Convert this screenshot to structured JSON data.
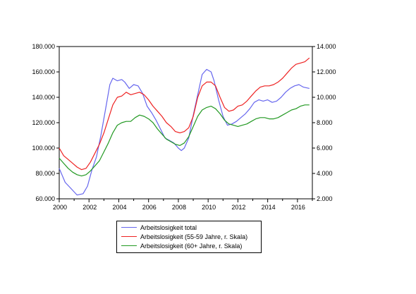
{
  "chart_data": {
    "type": "line",
    "title": "",
    "xlabel": "",
    "ylabel": "",
    "xlim": [
      2000,
      2017
    ],
    "ylim": [
      60000,
      180000
    ],
    "y2lim": [
      2000,
      14000
    ],
    "x_tick_labels": [
      "2000",
      "2002",
      "2004",
      "2006",
      "2008",
      "2010",
      "2012",
      "2014",
      "2016"
    ],
    "y_tick_labels": [
      "60.000",
      "80.000",
      "100.000",
      "120.000",
      "140.000",
      "160.000",
      "180.000"
    ],
    "y2_tick_labels": [
      "2.000",
      "4.000",
      "6.000",
      "8.000",
      "10.000",
      "12.000",
      "14.000"
    ],
    "grid": false,
    "legend_position": "bottom",
    "series": [
      {
        "name": "Arbeitslosigkeit total",
        "axis": "left",
        "color": "#6666ee",
        "points": [
          [
            2000.0,
            84000
          ],
          [
            2000.4,
            73000
          ],
          [
            2000.8,
            68000
          ],
          [
            2001.2,
            63000
          ],
          [
            2001.6,
            64000
          ],
          [
            2001.9,
            70000
          ],
          [
            2002.2,
            83000
          ],
          [
            2002.5,
            93000
          ],
          [
            2002.8,
            110000
          ],
          [
            2003.1,
            130000
          ],
          [
            2003.4,
            150000
          ],
          [
            2003.6,
            155000
          ],
          [
            2003.9,
            153000
          ],
          [
            2004.2,
            154000
          ],
          [
            2004.4,
            152000
          ],
          [
            2004.7,
            147000
          ],
          [
            2005.0,
            150000
          ],
          [
            2005.3,
            149000
          ],
          [
            2005.6,
            143000
          ],
          [
            2005.9,
            133000
          ],
          [
            2006.2,
            128000
          ],
          [
            2006.5,
            122000
          ],
          [
            2006.8,
            115000
          ],
          [
            2007.1,
            108000
          ],
          [
            2007.4,
            106000
          ],
          [
            2007.7,
            104000
          ],
          [
            2008.0,
            100000
          ],
          [
            2008.2,
            98000
          ],
          [
            2008.4,
            100000
          ],
          [
            2008.7,
            108000
          ],
          [
            2009.0,
            126000
          ],
          [
            2009.3,
            142000
          ],
          [
            2009.6,
            158000
          ],
          [
            2009.9,
            162000
          ],
          [
            2010.2,
            160000
          ],
          [
            2010.4,
            153000
          ],
          [
            2010.7,
            138000
          ],
          [
            2011.0,
            125000
          ],
          [
            2011.3,
            118000
          ],
          [
            2011.6,
            119000
          ],
          [
            2011.9,
            121000
          ],
          [
            2012.2,
            124000
          ],
          [
            2012.5,
            127000
          ],
          [
            2012.8,
            131000
          ],
          [
            2013.1,
            136000
          ],
          [
            2013.4,
            138000
          ],
          [
            2013.7,
            137000
          ],
          [
            2014.0,
            138000
          ],
          [
            2014.3,
            136000
          ],
          [
            2014.6,
            137000
          ],
          [
            2014.9,
            140000
          ],
          [
            2015.2,
            144000
          ],
          [
            2015.5,
            147000
          ],
          [
            2015.8,
            149000
          ],
          [
            2016.1,
            150000
          ],
          [
            2016.4,
            148000
          ],
          [
            2016.8,
            147000
          ]
        ]
      },
      {
        "name": "Arbeitslosigkeit (55-59 Jahre, r. Skala)",
        "axis": "right",
        "color": "#ee2222",
        "points": [
          [
            2000.0,
            6000
          ],
          [
            2000.3,
            5400
          ],
          [
            2000.6,
            5100
          ],
          [
            2000.9,
            4800
          ],
          [
            2001.2,
            4500
          ],
          [
            2001.5,
            4300
          ],
          [
            2001.8,
            4400
          ],
          [
            2002.1,
            4900
          ],
          [
            2002.4,
            5600
          ],
          [
            2002.7,
            6300
          ],
          [
            2003.0,
            7200
          ],
          [
            2003.3,
            8300
          ],
          [
            2003.6,
            9400
          ],
          [
            2003.9,
            10000
          ],
          [
            2004.2,
            10100
          ],
          [
            2004.5,
            10400
          ],
          [
            2004.8,
            10200
          ],
          [
            2005.1,
            10300
          ],
          [
            2005.4,
            10400
          ],
          [
            2005.7,
            10200
          ],
          [
            2006.0,
            9800
          ],
          [
            2006.3,
            9300
          ],
          [
            2006.6,
            8900
          ],
          [
            2006.9,
            8500
          ],
          [
            2007.2,
            8000
          ],
          [
            2007.5,
            7700
          ],
          [
            2007.8,
            7300
          ],
          [
            2008.1,
            7200
          ],
          [
            2008.4,
            7300
          ],
          [
            2008.7,
            7600
          ],
          [
            2009.0,
            8500
          ],
          [
            2009.3,
            10000
          ],
          [
            2009.6,
            10900
          ],
          [
            2009.9,
            11200
          ],
          [
            2010.2,
            11200
          ],
          [
            2010.5,
            10900
          ],
          [
            2010.8,
            10000
          ],
          [
            2011.1,
            9200
          ],
          [
            2011.4,
            8900
          ],
          [
            2011.7,
            9000
          ],
          [
            2012.0,
            9300
          ],
          [
            2012.3,
            9400
          ],
          [
            2012.6,
            9700
          ],
          [
            2012.9,
            10100
          ],
          [
            2013.2,
            10500
          ],
          [
            2013.5,
            10800
          ],
          [
            2013.8,
            10900
          ],
          [
            2014.1,
            10900
          ],
          [
            2014.4,
            11000
          ],
          [
            2014.7,
            11200
          ],
          [
            2015.0,
            11500
          ],
          [
            2015.3,
            11900
          ],
          [
            2015.6,
            12300
          ],
          [
            2015.9,
            12600
          ],
          [
            2016.2,
            12700
          ],
          [
            2016.5,
            12800
          ],
          [
            2016.8,
            13100
          ]
        ]
      },
      {
        "name": "Arbeitslosigkeit (60+ Jahre, r. Skala)",
        "axis": "right",
        "color": "#229922",
        "points": [
          [
            2000.0,
            5200
          ],
          [
            2000.3,
            4800
          ],
          [
            2000.6,
            4400
          ],
          [
            2000.9,
            4100
          ],
          [
            2001.2,
            3900
          ],
          [
            2001.5,
            3800
          ],
          [
            2001.8,
            3900
          ],
          [
            2002.1,
            4200
          ],
          [
            2002.4,
            4600
          ],
          [
            2002.7,
            5000
          ],
          [
            2003.0,
            5700
          ],
          [
            2003.3,
            6400
          ],
          [
            2003.6,
            7200
          ],
          [
            2003.9,
            7800
          ],
          [
            2004.2,
            8000
          ],
          [
            2004.5,
            8100
          ],
          [
            2004.8,
            8100
          ],
          [
            2005.1,
            8400
          ],
          [
            2005.4,
            8600
          ],
          [
            2005.7,
            8500
          ],
          [
            2006.0,
            8300
          ],
          [
            2006.3,
            8000
          ],
          [
            2006.6,
            7500
          ],
          [
            2006.9,
            7100
          ],
          [
            2007.2,
            6700
          ],
          [
            2007.5,
            6500
          ],
          [
            2007.8,
            6300
          ],
          [
            2008.1,
            6200
          ],
          [
            2008.4,
            6400
          ],
          [
            2008.7,
            6900
          ],
          [
            2009.0,
            7700
          ],
          [
            2009.3,
            8500
          ],
          [
            2009.6,
            9000
          ],
          [
            2009.9,
            9200
          ],
          [
            2010.2,
            9300
          ],
          [
            2010.5,
            9100
          ],
          [
            2010.8,
            8700
          ],
          [
            2011.1,
            8200
          ],
          [
            2011.4,
            7900
          ],
          [
            2011.7,
            7800
          ],
          [
            2012.0,
            7700
          ],
          [
            2012.3,
            7800
          ],
          [
            2012.6,
            7900
          ],
          [
            2012.9,
            8100
          ],
          [
            2013.2,
            8300
          ],
          [
            2013.5,
            8400
          ],
          [
            2013.8,
            8400
          ],
          [
            2014.1,
            8300
          ],
          [
            2014.4,
            8300
          ],
          [
            2014.7,
            8400
          ],
          [
            2015.0,
            8600
          ],
          [
            2015.3,
            8800
          ],
          [
            2015.6,
            9000
          ],
          [
            2015.9,
            9100
          ],
          [
            2016.2,
            9300
          ],
          [
            2016.5,
            9400
          ],
          [
            2016.8,
            9400
          ]
        ]
      }
    ]
  }
}
